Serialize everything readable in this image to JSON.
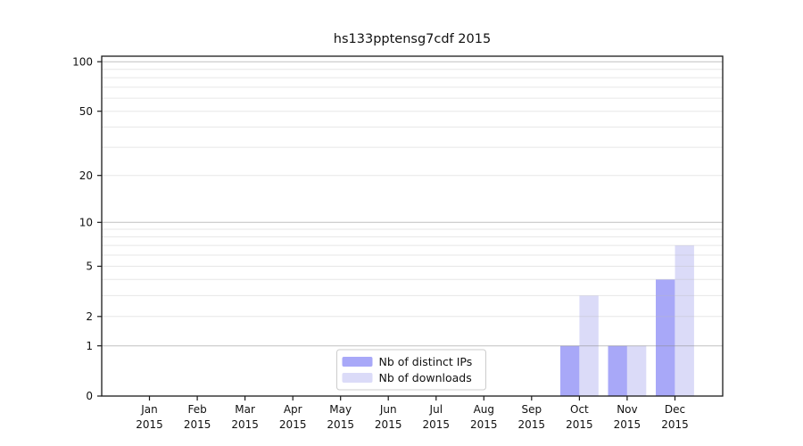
{
  "chart_data": {
    "type": "bar",
    "title": "hs133pptensg7cdf 2015",
    "categories": [
      "Jan",
      "Feb",
      "Mar",
      "Apr",
      "May",
      "Jun",
      "Jul",
      "Aug",
      "Sep",
      "Oct",
      "Nov",
      "Dec"
    ],
    "category_year": "2015",
    "series": [
      {
        "name": "Nb of distinct IPs",
        "color": "#a8a8f8",
        "values": [
          0,
          0,
          0,
          0,
          0,
          0,
          0,
          0,
          0,
          1,
          1,
          4
        ]
      },
      {
        "name": "Nb of downloads",
        "color": "#dbdbf8",
        "values": [
          0,
          0,
          0,
          0,
          0,
          0,
          0,
          0,
          0,
          3,
          1,
          7
        ]
      }
    ],
    "yscale": "log1p",
    "yticks": [
      0,
      1,
      2,
      5,
      10,
      20,
      50,
      100
    ],
    "ylim": [
      0,
      108
    ],
    "grid": true,
    "legend_position": "lower center",
    "colors": {
      "spine": "#1a1a1a",
      "major_grid": "#cdcdcd",
      "minor_grid": "#ededed",
      "legend_border": "#cccccc",
      "background": "#ffffff"
    }
  }
}
